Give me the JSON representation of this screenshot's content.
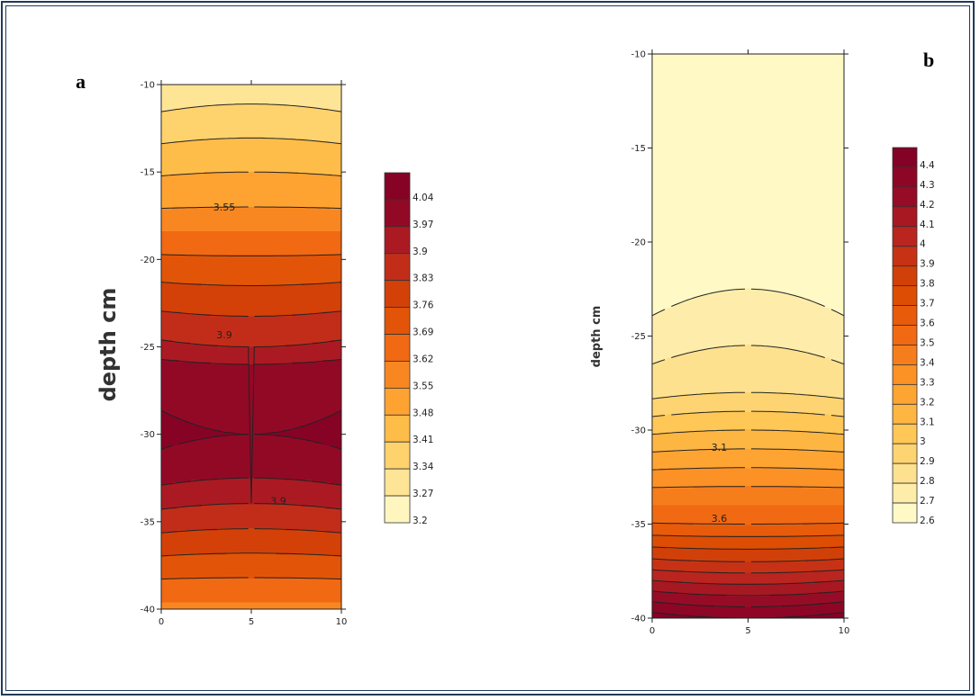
{
  "panels": {
    "a": {
      "letter": "a"
    },
    "b": {
      "letter": "b"
    }
  },
  "chart_data": [
    {
      "type": "contour",
      "panel": "a",
      "xlabel": "",
      "ylabel": "depth cm",
      "xlim": [
        0,
        10
      ],
      "ylim": [
        -40,
        -10
      ],
      "x_ticks": [
        "0",
        "5",
        "10"
      ],
      "y_ticks": [
        "-10",
        "-15",
        "-20",
        "-25",
        "-30",
        "-35",
        "-40"
      ],
      "x_tick_values": [
        0,
        5,
        10
      ],
      "y_tick_values": [
        -10,
        -15,
        -20,
        -25,
        -30,
        -35,
        -40
      ],
      "contour_levels": [
        3.2,
        3.27,
        3.34,
        3.41,
        3.48,
        3.55,
        3.62,
        3.69,
        3.76,
        3.83,
        3.9,
        3.97,
        4.04
      ],
      "colorbar_labels": [
        "4.04",
        "3.97",
        "3.9",
        "3.83",
        "3.76",
        "3.69",
        "3.62",
        "3.55",
        "3.48",
        "3.41",
        "3.34",
        "3.27",
        "3.2"
      ],
      "profile": {
        "depth": [
          -10,
          -15,
          -17,
          -20,
          -25,
          -26,
          -30,
          -32.5,
          -35,
          -40
        ],
        "value": [
          3.3,
          3.48,
          3.55,
          3.7,
          3.9,
          3.97,
          4.04,
          3.97,
          3.85,
          3.6
        ]
      },
      "contour_labels": [
        {
          "text": "3.55",
          "x": 3.5,
          "y": -17.0
        },
        {
          "text": "3.9",
          "x": 3.5,
          "y": -24.3
        },
        {
          "text": "3.9",
          "x": 6.5,
          "y": -33.8
        }
      ]
    },
    {
      "type": "contour",
      "panel": "b",
      "xlabel": "",
      "ylabel": "depth cm",
      "xlim": [
        0,
        10
      ],
      "ylim": [
        -40,
        -10
      ],
      "x_ticks": [
        "0",
        "5",
        "10"
      ],
      "y_ticks": [
        "-10",
        "-15",
        "-20",
        "-25",
        "-30",
        "-35",
        "-40"
      ],
      "x_tick_values": [
        0,
        5,
        10
      ],
      "y_tick_values": [
        -10,
        -15,
        -20,
        -25,
        -30,
        -35,
        -40
      ],
      "contour_levels": [
        2.6,
        2.7,
        2.8,
        2.9,
        3.0,
        3.1,
        3.2,
        3.3,
        3.4,
        3.5,
        3.6,
        3.7,
        3.8,
        3.9,
        4.0,
        4.1,
        4.2,
        4.3,
        4.4
      ],
      "colorbar_labels": [
        "4.4",
        "4.3",
        "4.2",
        "4.1",
        "4",
        "3.9",
        "3.8",
        "3.7",
        "3.6",
        "3.5",
        "3.4",
        "3.3",
        "3.2",
        "3.1",
        "3",
        "2.9",
        "2.8",
        "2.7",
        "2.6"
      ],
      "profile": {
        "depth": [
          -10,
          -15,
          -20,
          -22.5,
          -25,
          -28,
          -30,
          -32,
          -35,
          -37,
          -40
        ],
        "value": [
          2.6,
          2.62,
          2.68,
          2.7,
          2.78,
          2.9,
          3.1,
          3.3,
          3.6,
          3.9,
          4.4
        ]
      },
      "contour_labels": [
        {
          "text": "3.1",
          "x": 3.5,
          "y": -30.9
        },
        {
          "text": "3.6",
          "x": 3.5,
          "y": -34.7
        }
      ]
    }
  ]
}
